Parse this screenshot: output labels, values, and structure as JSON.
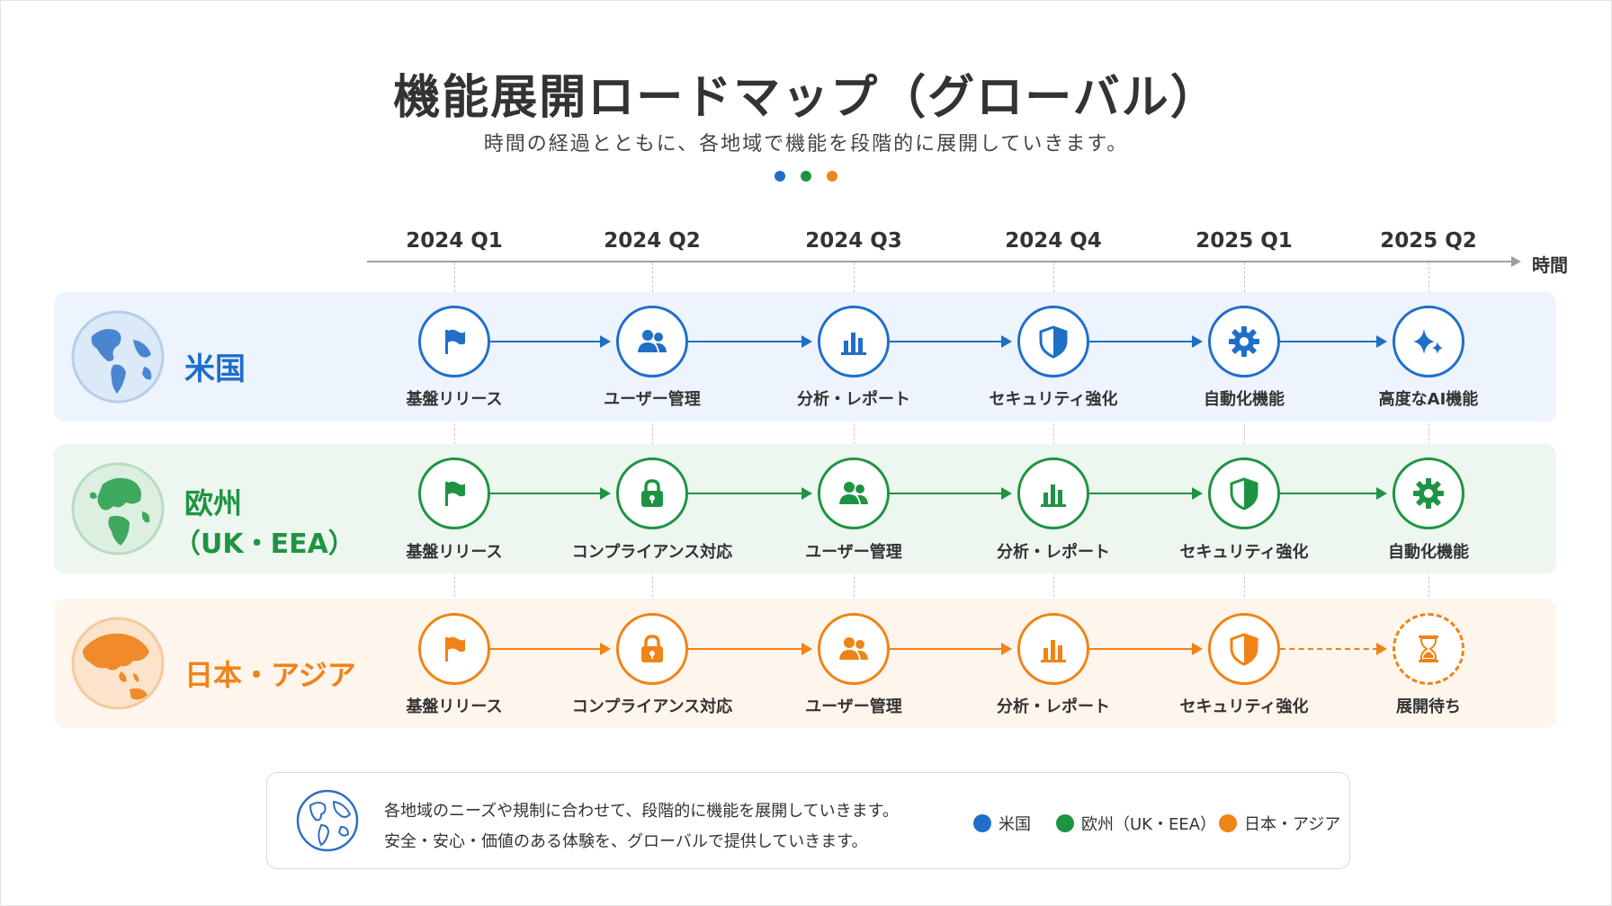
{
  "title": "機能展開ロードマップ（グローバル）",
  "subtitle": "時間の経過とともに、各地域で機能を段階的に展開していきます。",
  "axis": {
    "label": "時間",
    "quarters": [
      "2024 Q1",
      "2024 Q2",
      "2024 Q3",
      "2024 Q4",
      "2025 Q1",
      "2025 Q2"
    ]
  },
  "colors": {
    "us": "#1f6fc9",
    "eu": "#1e9443",
    "asia": "#f08316"
  },
  "regions": [
    {
      "name": "米国",
      "globe_icon": "globe-americas-icon",
      "milestones": [
        {
          "label": "基盤リリース",
          "icon": "flag-icon"
        },
        {
          "label": "ユーザー管理",
          "icon": "users-icon"
        },
        {
          "label": "分析・レポート",
          "icon": "bar-chart-icon"
        },
        {
          "label": "セキュリティ強化",
          "icon": "shield-icon"
        },
        {
          "label": "自動化機能",
          "icon": "gear-icon"
        },
        {
          "label": "高度なAI機能",
          "icon": "sparkle-icon"
        }
      ]
    },
    {
      "name_line1": "欧州",
      "name_line2": "（UK・EEA）",
      "globe_icon": "globe-europe-icon",
      "milestones": [
        {
          "label": "基盤リリース",
          "icon": "flag-icon"
        },
        {
          "label": "コンプライアンス対応",
          "icon": "lock-icon"
        },
        {
          "label": "ユーザー管理",
          "icon": "users-icon"
        },
        {
          "label": "分析・レポート",
          "icon": "bar-chart-icon"
        },
        {
          "label": "セキュリティ強化",
          "icon": "shield-icon"
        },
        {
          "label": "自動化機能",
          "icon": "gear-icon"
        }
      ]
    },
    {
      "name": "日本・アジア",
      "globe_icon": "globe-asia-icon",
      "milestones": [
        {
          "label": "基盤リリース",
          "icon": "flag-icon"
        },
        {
          "label": "コンプライアンス対応",
          "icon": "lock-icon"
        },
        {
          "label": "ユーザー管理",
          "icon": "users-icon"
        },
        {
          "label": "分析・レポート",
          "icon": "bar-chart-icon"
        },
        {
          "label": "セキュリティ強化",
          "icon": "shield-icon"
        },
        {
          "label": "展開待ち",
          "icon": "hourglass-icon"
        }
      ]
    }
  ],
  "note": {
    "line1": "各地域のニーズや規制に合わせて、段階的に機能を展開していきます。",
    "line2": "安全・安心・価値のある体験を、グローバルで提供していきます。"
  },
  "legend": [
    "米国",
    "欧州（UK・EEA）",
    "日本・アジア"
  ]
}
